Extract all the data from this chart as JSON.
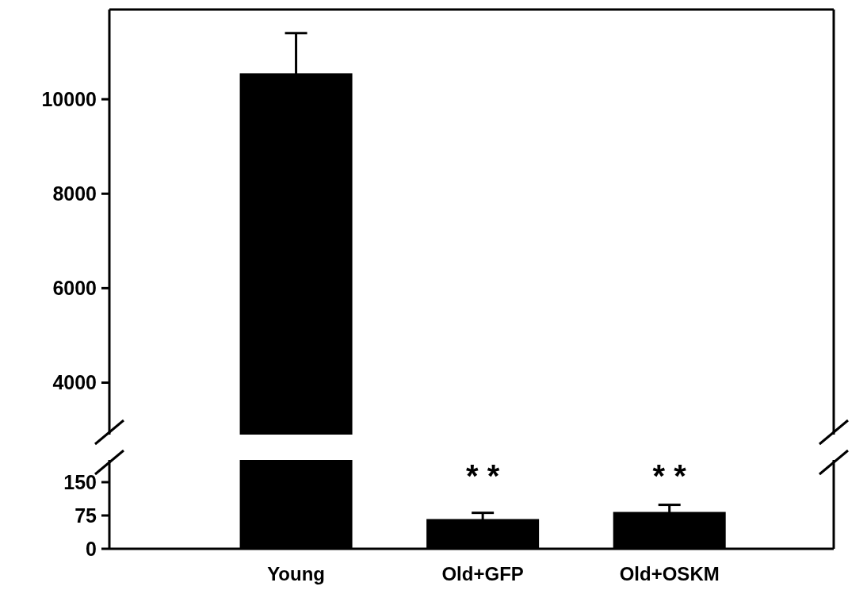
{
  "chart_data": [
    {
      "type": "bar",
      "categories": [
        null,
        null,
        null
      ],
      "values": [
        10550,
        null,
        null
      ],
      "errors": [
        850,
        null,
        null
      ],
      "color": "#000000",
      "ylim": [
        2900,
        11900
      ],
      "yticks": [
        4000,
        6000,
        8000,
        10000
      ],
      "tick_labels": "y",
      "grid": false
    },
    {
      "type": "bar",
      "categories": [
        "Young",
        "Old+GFP",
        "Old+OSKM"
      ],
      "values": [
        null,
        67,
        83
      ],
      "errors": [
        null,
        14,
        16
      ],
      "color": "#000000",
      "ylim": [
        0,
        200
      ],
      "yticks": [
        0,
        75,
        150
      ],
      "grid": false,
      "annotations": [
        "* *",
        "* *"
      ]
    }
  ]
}
